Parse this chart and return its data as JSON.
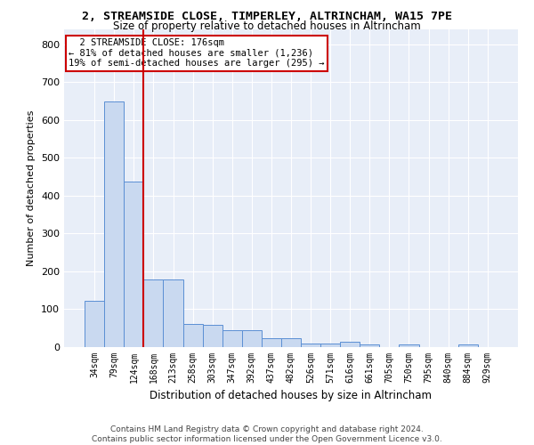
{
  "title": "2, STREAMSIDE CLOSE, TIMPERLEY, ALTRINCHAM, WA15 7PE",
  "subtitle": "Size of property relative to detached houses in Altrincham",
  "xlabel": "Distribution of detached houses by size in Altrincham",
  "ylabel": "Number of detached properties",
  "bar_color": "#c9d9f0",
  "bar_edge_color": "#5b8fd4",
  "background_color": "#e8eef8",
  "grid_color": "white",
  "categories": [
    "34sqm",
    "79sqm",
    "124sqm",
    "168sqm",
    "213sqm",
    "258sqm",
    "303sqm",
    "347sqm",
    "392sqm",
    "437sqm",
    "482sqm",
    "526sqm",
    "571sqm",
    "616sqm",
    "661sqm",
    "705sqm",
    "750sqm",
    "795sqm",
    "840sqm",
    "884sqm",
    "929sqm"
  ],
  "values": [
    122,
    648,
    437,
    178,
    178,
    60,
    58,
    44,
    44,
    24,
    24,
    10,
    10,
    14,
    7,
    0,
    7,
    0,
    0,
    8,
    0
  ],
  "vline_x_index": 3,
  "vline_color": "#cc0000",
  "annotation_text": "  2 STREAMSIDE CLOSE: 176sqm  \n← 81% of detached houses are smaller (1,236)\n19% of semi-detached houses are larger (295) →",
  "annotation_box_color": "white",
  "annotation_box_edge_color": "#cc0000",
  "footnote": "Contains HM Land Registry data © Crown copyright and database right 2024.\nContains public sector information licensed under the Open Government Licence v3.0.",
  "ylim": [
    0,
    840
  ],
  "yticks": [
    0,
    100,
    200,
    300,
    400,
    500,
    600,
    700,
    800
  ]
}
